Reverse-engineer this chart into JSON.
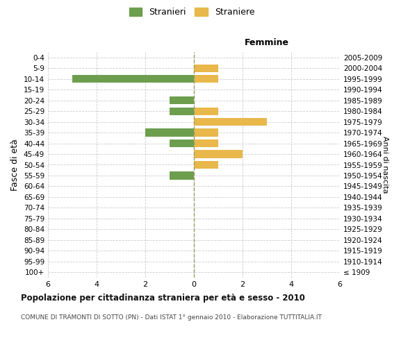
{
  "age_groups": [
    "100+",
    "95-99",
    "90-94",
    "85-89",
    "80-84",
    "75-79",
    "70-74",
    "65-69",
    "60-64",
    "55-59",
    "50-54",
    "45-49",
    "40-44",
    "35-39",
    "30-34",
    "25-29",
    "20-24",
    "15-19",
    "10-14",
    "5-9",
    "0-4"
  ],
  "birth_years": [
    "≤ 1909",
    "1910-1914",
    "1915-1919",
    "1920-1924",
    "1925-1929",
    "1930-1934",
    "1935-1939",
    "1940-1944",
    "1945-1949",
    "1950-1954",
    "1955-1959",
    "1960-1964",
    "1965-1969",
    "1970-1974",
    "1975-1979",
    "1980-1984",
    "1985-1989",
    "1990-1994",
    "1995-1999",
    "2000-2004",
    "2005-2009"
  ],
  "males": [
    0,
    0,
    0,
    0,
    0,
    0,
    0,
    0,
    0,
    1,
    0,
    0,
    1,
    2,
    0,
    1,
    1,
    0,
    5,
    0,
    0
  ],
  "females": [
    0,
    0,
    0,
    0,
    0,
    0,
    0,
    0,
    0,
    0,
    1,
    2,
    1,
    1,
    3,
    1,
    0,
    0,
    1,
    1,
    0
  ],
  "male_color": "#6d9e4e",
  "female_color": "#e8b84b",
  "grid_color": "#cccccc",
  "center_line_color": "#999966",
  "title": "Popolazione per cittadinanza straniera per età e sesso - 2010",
  "subtitle": "COMUNE DI TRAMONTI DI SOTTO (PN) - Dati ISTAT 1° gennaio 2010 - Elaborazione TUTTITALIA.IT",
  "ylabel_left": "Fasce di età",
  "ylabel_right": "Anni di nascita",
  "xlabel_femmine": "Femmine",
  "legend_male": "Stranieri",
  "legend_female": "Straniere",
  "xlim": 6,
  "background_color": "#ffffff"
}
